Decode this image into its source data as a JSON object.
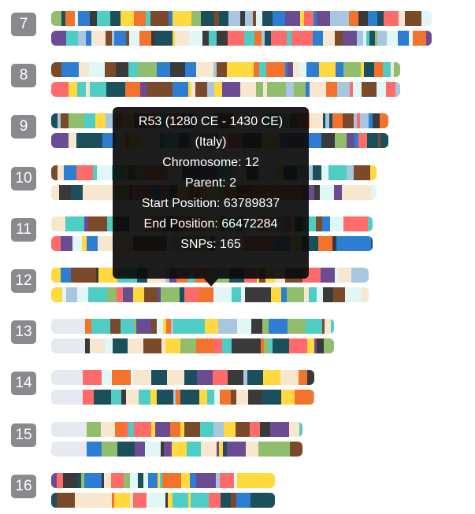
{
  "palette": [
    "#4ecdc4",
    "#ff6b6b",
    "#ffd93d",
    "#1b4f5c",
    "#a8c6df",
    "#2d7dd2",
    "#f3722c",
    "#90be6d",
    "#6a4c93",
    "#f7e7ce",
    "#3a3a3a",
    "#e0f7f5",
    "#7b4a2a"
  ],
  "empty_color": "#e6e9f0",
  "chromosomes": [
    {
      "number": "7",
      "strands": [
        {
          "extent": 0.97,
          "start": 0.0
        },
        {
          "extent": 0.97,
          "start": 0.0
        }
      ]
    },
    {
      "number": "8",
      "strands": [
        {
          "extent": 0.89,
          "start": 0.0
        },
        {
          "extent": 0.89,
          "start": 0.0
        }
      ]
    },
    {
      "number": "9",
      "strands": [
        {
          "extent": 0.86,
          "start": 0.0
        },
        {
          "extent": 0.86,
          "start": 0.0
        }
      ]
    },
    {
      "number": "10",
      "strands": [
        {
          "extent": 0.83,
          "start": 0.0
        },
        {
          "extent": 0.83,
          "start": 0.0
        }
      ]
    },
    {
      "number": "11",
      "strands": [
        {
          "extent": 0.82,
          "start": 0.0
        },
        {
          "extent": 0.82,
          "start": 0.0
        }
      ]
    },
    {
      "number": "12",
      "strands": [
        {
          "extent": 0.81,
          "start": 0.0
        },
        {
          "extent": 0.81,
          "start": 0.0
        }
      ]
    },
    {
      "number": "13",
      "strands": [
        {
          "extent": 0.72,
          "start": 0.12
        },
        {
          "extent": 0.72,
          "start": 0.12
        }
      ]
    },
    {
      "number": "14",
      "strands": [
        {
          "extent": 0.67,
          "start": 0.12
        },
        {
          "extent": 0.67,
          "start": 0.12
        }
      ]
    },
    {
      "number": "15",
      "strands": [
        {
          "extent": 0.64,
          "start": 0.14
        },
        {
          "extent": 0.64,
          "start": 0.14
        }
      ]
    },
    {
      "number": "16",
      "strands": [
        {
          "extent": 0.57,
          "start": 0.0
        },
        {
          "extent": 0.57,
          "start": 0.0
        }
      ]
    }
  ],
  "tooltip": {
    "title": "R53 (1280 CE - 1430 CE)",
    "region": "(Italy)",
    "chromosome": "Chromosome: 12",
    "parent": "Parent: 2",
    "start_position": "Start Position: 63789837",
    "end_position": "End Position: 66472284",
    "snps": "SNPs: 165"
  }
}
